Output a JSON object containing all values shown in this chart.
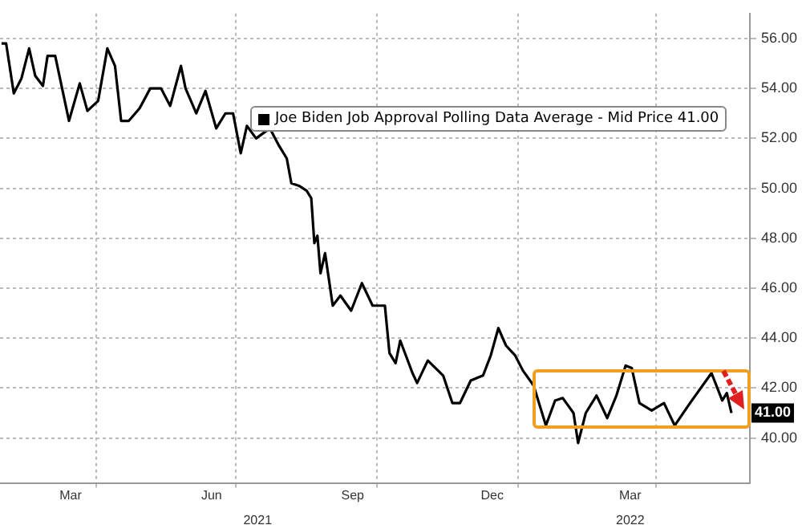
{
  "chart_data": {
    "type": "line",
    "x": [
      "2021-01-29",
      "2021-02-01",
      "2021-02-03",
      "2021-02-06",
      "2021-02-11",
      "2021-02-16",
      "2021-02-20",
      "2021-02-25",
      "2021-02-28",
      "2021-03-05",
      "2021-03-14",
      "2021-03-21",
      "2021-03-26",
      "2021-04-02",
      "2021-04-08",
      "2021-04-13",
      "2021-04-17",
      "2021-04-22",
      "2021-04-29",
      "2021-05-06",
      "2021-05-13",
      "2021-05-19",
      "2021-05-26",
      "2021-05-29",
      "2021-06-05",
      "2021-06-11",
      "2021-06-18",
      "2021-06-24",
      "2021-06-29",
      "2021-07-04",
      "2021-07-08",
      "2021-07-14",
      "2021-07-23",
      "2021-07-29",
      "2021-08-03",
      "2021-08-06",
      "2021-08-11",
      "2021-08-16",
      "2021-08-19",
      "2021-08-21",
      "2021-08-23",
      "2021-08-25",
      "2021-08-28",
      "2021-09-02",
      "2021-09-07",
      "2021-09-14",
      "2021-09-21",
      "2021-09-28",
      "2021-10-06",
      "2021-10-09",
      "2021-10-13",
      "2021-10-16",
      "2021-10-24",
      "2021-10-27",
      "2021-11-03",
      "2021-11-13",
      "2021-11-19",
      "2021-11-24",
      "2021-12-01",
      "2021-12-09",
      "2021-12-14",
      "2021-12-19",
      "2021-12-24",
      "2021-12-30",
      "2022-01-04",
      "2022-01-11",
      "2022-01-19",
      "2022-01-25",
      "2022-01-30",
      "2022-02-06",
      "2022-02-09",
      "2022-02-14",
      "2022-02-21",
      "2022-02-28",
      "2022-03-06",
      "2022-03-12",
      "2022-03-16",
      "2022-03-21",
      "2022-03-29",
      "2022-04-06",
      "2022-04-13",
      "2022-04-23",
      "2022-05-07",
      "2022-05-14",
      "2022-05-17",
      "2022-05-20"
    ],
    "series": [
      {
        "name": "Joe Biden Job Approval Polling Data Average - Mid Price 41.00",
        "color": "#000000",
        "values": [
          55.8,
          55.8,
          55.0,
          53.8,
          54.4,
          55.6,
          54.5,
          54.1,
          55.3,
          55.3,
          52.7,
          54.2,
          53.1,
          53.5,
          55.6,
          54.9,
          52.7,
          52.7,
          53.2,
          54.0,
          54.0,
          53.3,
          54.9,
          54.0,
          53.0,
          53.9,
          52.4,
          53.0,
          53.0,
          51.4,
          52.5,
          52.0,
          52.4,
          51.7,
          51.2,
          50.2,
          50.1,
          49.9,
          49.6,
          47.8,
          48.1,
          46.6,
          47.4,
          45.3,
          45.7,
          45.1,
          46.2,
          45.3,
          45.3,
          43.4,
          43.0,
          43.9,
          42.6,
          42.2,
          43.1,
          42.5,
          41.4,
          41.4,
          42.3,
          42.5,
          43.3,
          44.4,
          43.7,
          43.3,
          42.7,
          42.1,
          40.5,
          41.5,
          41.6,
          41.0,
          39.8,
          41.0,
          41.7,
          40.8,
          41.7,
          42.9,
          42.8,
          41.4,
          41.1,
          41.4,
          40.5,
          41.4,
          42.6,
          41.5,
          41.8,
          41.0
        ]
      }
    ],
    "xlim": [
      "2021-01-28",
      "2022-06-01"
    ],
    "xticks": [
      {
        "value": "2021-03-15",
        "label": "Mar"
      },
      {
        "value": "2021-04-01",
        "label": null
      },
      {
        "value": "2021-06-15",
        "label": "Jun"
      },
      {
        "value": "2021-07-01",
        "label": null
      },
      {
        "value": "2021-09-15",
        "label": "Sep"
      },
      {
        "value": "2021-10-01",
        "label": null
      },
      {
        "value": "2021-12-15",
        "label": "Dec"
      },
      {
        "value": "2022-01-01",
        "label": null
      },
      {
        "value": "2022-03-15",
        "label": "Mar"
      },
      {
        "value": "2022-04-01",
        "label": null
      }
    ],
    "x2lim": [
      "2021-01-28",
      "2022-06-01"
    ],
    "x2ticks": [
      {
        "value": "2021-07-15",
        "label": "2021"
      },
      {
        "value": "2022-03-15",
        "label": "2022"
      }
    ],
    "ylim": [
      38.2,
      57
    ],
    "yticks": [
      {
        "value": 40,
        "label": "40.00"
      },
      {
        "value": 42,
        "label": "42.00"
      },
      {
        "value": 44,
        "label": "44.00"
      },
      {
        "value": 46,
        "label": "46.00"
      },
      {
        "value": 48,
        "label": "48.00"
      },
      {
        "value": 50,
        "label": "50.00"
      },
      {
        "value": 52,
        "label": "52.00"
      },
      {
        "value": 54,
        "label": "54.00"
      },
      {
        "value": 56,
        "label": "56.00"
      }
    ],
    "annotations": [
      {
        "text": "41.00",
        "x": "2022-05-20",
        "y": 41
      }
    ],
    "grid": true,
    "legend": "top right",
    "marker": "none",
    "line_style": "solid"
  }
}
